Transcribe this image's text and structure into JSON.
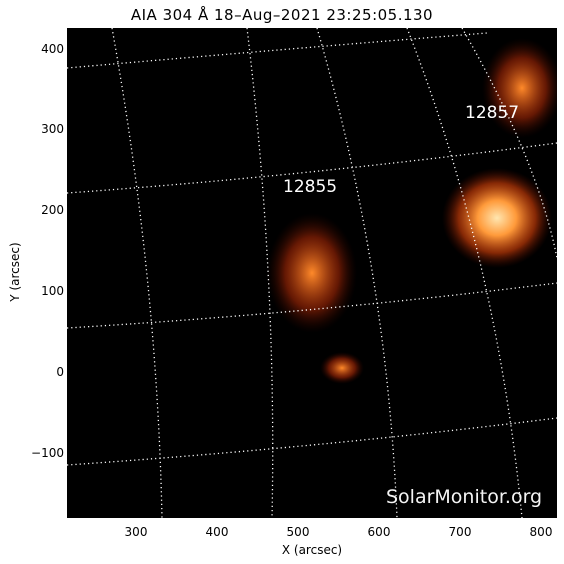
{
  "title": "AIA 304 Å 18–Aug–2021  23:25:05.130",
  "x_axis": {
    "label": "X (arcsec)",
    "ticks": [
      "300",
      "400",
      "500",
      "600",
      "700",
      "800"
    ]
  },
  "y_axis": {
    "label": "Y (arcsec)",
    "ticks": [
      "400",
      "300",
      "200",
      "100",
      "0",
      "−100"
    ]
  },
  "active_regions": [
    {
      "id": "12857"
    },
    {
      "id": "12855"
    }
  ],
  "watermark": "SolarMonitor.org",
  "colors": {
    "background": "#000000",
    "emission_dim": "#6a0f00",
    "emission_mid": "#d24a10",
    "emission_bright": "#ffe6b0",
    "grid": "#ffffff"
  }
}
